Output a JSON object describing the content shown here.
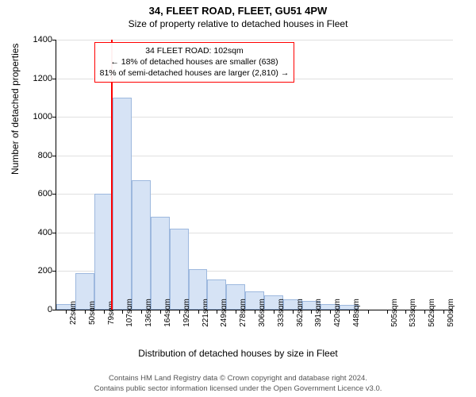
{
  "title_main": "34, FLEET ROAD, FLEET, GU51 4PW",
  "title_sub": "Size of property relative to detached houses in Fleet",
  "ylabel": "Number of detached properties",
  "xlabel": "Distribution of detached houses by size in Fleet",
  "chart": {
    "type": "histogram",
    "ylim": [
      0,
      1400
    ],
    "ytick_step": 200,
    "yticks": [
      0,
      200,
      400,
      600,
      800,
      1000,
      1200,
      1400
    ],
    "x_categories": [
      "22sqm",
      "50sqm",
      "79sqm",
      "107sqm",
      "136sqm",
      "164sqm",
      "192sqm",
      "221sqm",
      "249sqm",
      "278sqm",
      "306sqm",
      "333sqm",
      "362sqm",
      "391sqm",
      "420sqm",
      "448sqm",
      "",
      "505sqm",
      "533sqm",
      "562sqm",
      "590sqm"
    ],
    "values": [
      30,
      190,
      600,
      1100,
      670,
      480,
      420,
      210,
      155,
      130,
      95,
      75,
      55,
      45,
      30,
      25,
      0,
      0,
      0,
      0,
      0
    ],
    "bar_fill": "#d6e3f5",
    "bar_border": "#9db8de",
    "marker_index": 2.9,
    "marker_color": "#ff0000",
    "background_color": "#ffffff",
    "grid_color": "#e0e0e0",
    "axis_color": "#000000",
    "title_fontsize": 13,
    "subtitle_fontsize": 12,
    "label_fontsize": 12,
    "tick_fontsize": 11
  },
  "info_box": {
    "line1": "34 FLEET ROAD: 102sqm",
    "line2": "← 18% of detached houses are smaller (638)",
    "line3": "81% of semi-detached houses are larger (2,810) →",
    "border_color": "#ff0000"
  },
  "footer": {
    "line1": "Contains HM Land Registry data © Crown copyright and database right 2024.",
    "line2": "Contains public sector information licensed under the Open Government Licence v3.0."
  }
}
